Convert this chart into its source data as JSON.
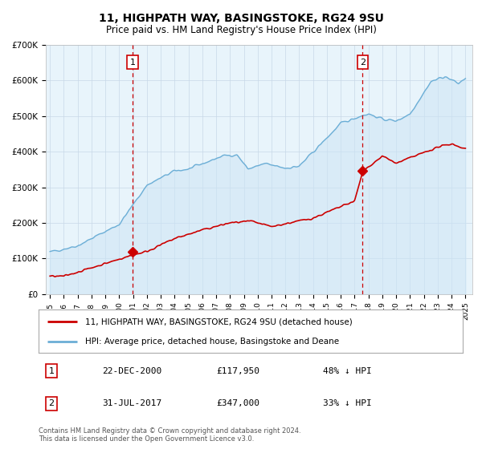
{
  "title1": "11, HIGHPATH WAY, BASINGSTOKE, RG24 9SU",
  "title2": "Price paid vs. HM Land Registry's House Price Index (HPI)",
  "ylim": [
    0,
    700000
  ],
  "yticks": [
    0,
    100000,
    200000,
    300000,
    400000,
    500000,
    600000,
    700000
  ],
  "ytick_labels": [
    "£0",
    "£100K",
    "£200K",
    "£300K",
    "£400K",
    "£500K",
    "£600K",
    "£700K"
  ],
  "hpi_color": "#6baed6",
  "hpi_fill_color": "#ddeeff",
  "price_color": "#cc0000",
  "marker1_date": 2000.98,
  "marker1_price": 117950,
  "marker2_date": 2017.58,
  "marker2_price": 347000,
  "vline_color": "#cc0000",
  "legend1": "11, HIGHPATH WAY, BASINGSTOKE, RG24 9SU (detached house)",
  "legend2": "HPI: Average price, detached house, Basingstoke and Deane",
  "table_row1": [
    "1",
    "22-DEC-2000",
    "£117,950",
    "48% ↓ HPI"
  ],
  "table_row2": [
    "2",
    "31-JUL-2017",
    "£347,000",
    "33% ↓ HPI"
  ],
  "footer1": "Contains HM Land Registry data © Crown copyright and database right 2024.",
  "footer2": "This data is licensed under the Open Government Licence v3.0.",
  "plot_bg_color": "#e8f4fb",
  "fig_bg_color": "#ffffff",
  "grid_color": "#ffffff",
  "xlim_left": 1994.7,
  "xlim_right": 2025.5
}
